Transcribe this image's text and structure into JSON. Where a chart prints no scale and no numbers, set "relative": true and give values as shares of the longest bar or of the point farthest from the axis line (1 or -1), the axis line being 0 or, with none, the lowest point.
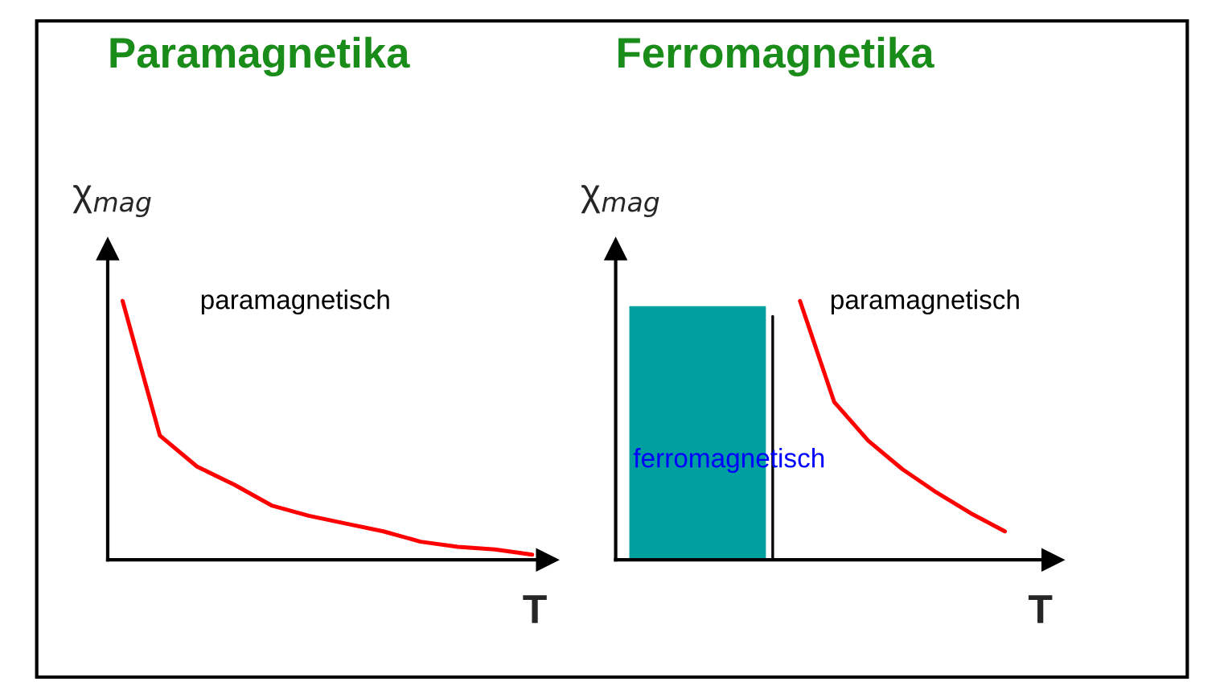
{
  "chart_data": [
    {
      "type": "line",
      "title": "Paramagnetika",
      "ylabel": "χ$_{mag}$",
      "xlabel": "T",
      "relative": true,
      "legend": false,
      "categories": [
        null,
        null,
        null,
        null,
        null,
        null,
        null,
        null,
        null,
        null,
        null,
        null
      ],
      "series": [
        {
          "color": "#ff0000",
          "values": [
            1,
            0.48,
            0.36,
            0.29,
            0.21,
            0.17,
            0.14,
            0.11,
            0.07,
            0.05,
            0.04,
            0.02
          ]
        }
      ],
      "annotations": [
        "paramagnetisch"
      ]
    },
    {
      "type": "line",
      "title": "Ferromagnetika",
      "ylabel": "χ$_{mag}$",
      "xlabel": "T",
      "relative": true,
      "legend": false,
      "categories": [
        null,
        null,
        null,
        null,
        null,
        null,
        null,
        null,
        null,
        null,
        null,
        null,
        null
      ],
      "series": [
        {
          "type": "area",
          "color": "#00a0a0",
          "values": [
            0.98,
            0.98,
            0.98,
            0.98,
            0.98,
            null,
            null,
            null,
            null,
            null,
            null,
            null,
            null
          ]
        },
        {
          "color": "#ff0000",
          "values": [
            null,
            null,
            null,
            null,
            null,
            1,
            0.61,
            0.46,
            0.35,
            0.26,
            0.18,
            0.11,
            null
          ]
        }
      ],
      "annotations": [
        "paramagnetisch",
        "ferromagnetisch"
      ]
    }
  ]
}
